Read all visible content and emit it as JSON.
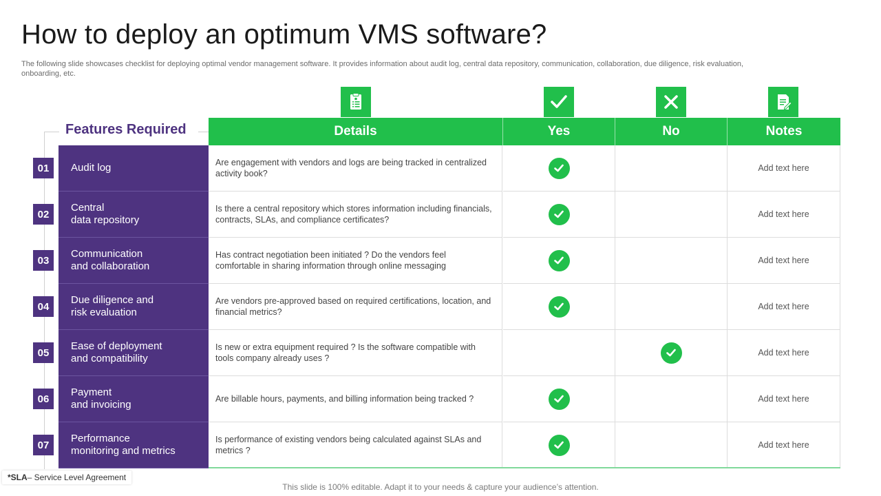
{
  "title": "How to deploy an optimum VMS software?",
  "subtitle": "The following slide showcases checklist for deploying optimal vendor management software. It provides information about audit log, central data repository, communication, collaboration, due diligence, risk evaluation, onboarding, etc.",
  "features_label": "Features Required",
  "columns": [
    "Details",
    "Yes",
    "No",
    "Notes"
  ],
  "header_icons": [
    "clipboard-list-icon",
    "checkmark-icon",
    "cross-icon",
    "document-edit-icon"
  ],
  "accent_green": "#21bf4b",
  "accent_purple": "#4e3380",
  "rows": [
    {
      "num": "01",
      "feature": "Audit log",
      "details": "Are engagement with vendors  and logs are being tracked in centralized activity book?",
      "answer": "yes",
      "notes": "Add text here"
    },
    {
      "num": "02",
      "feature": "Central\ndata repository",
      "details": "Is there a central repository which stores information including financials, contracts, SLAs, and compliance certificates?",
      "answer": "yes",
      "notes": "Add text here"
    },
    {
      "num": "03",
      "feature": "Communication\nand collaboration",
      "details": "Has contract negotiation been initiated ? Do the vendors feel comfortable in sharing information through online messaging",
      "answer": "yes",
      "notes": "Add text here"
    },
    {
      "num": "04",
      "feature": "Due diligence and\nrisk evaluation",
      "details": "Are vendors  pre-approved  based on required certifications, location, and financial metrics?",
      "answer": "yes",
      "notes": "Add text here"
    },
    {
      "num": "05",
      "feature": "Ease of deployment\nand compatibility",
      "details": "Is new or extra equipment required  ? Is the software compatible with tools company already uses ?",
      "answer": "no",
      "notes": "Add text here"
    },
    {
      "num": "06",
      "feature": "Payment\nand invoicing",
      "details": "Are billable hours, payments, and billing information being tracked ?",
      "answer": "yes",
      "notes": "Add text here"
    },
    {
      "num": "07",
      "feature": "Performance\nmonitoring and metrics",
      "details": "Is performance  of existing vendors  being calculated against SLAs and metrics ?",
      "answer": "yes",
      "notes": "Add text here"
    }
  ],
  "footnote_abbr": "*SLA",
  "footnote_text": "– Service Level Agreement",
  "footer": "This slide is 100% editable. Adapt it to your needs & capture your audience’s attention."
}
